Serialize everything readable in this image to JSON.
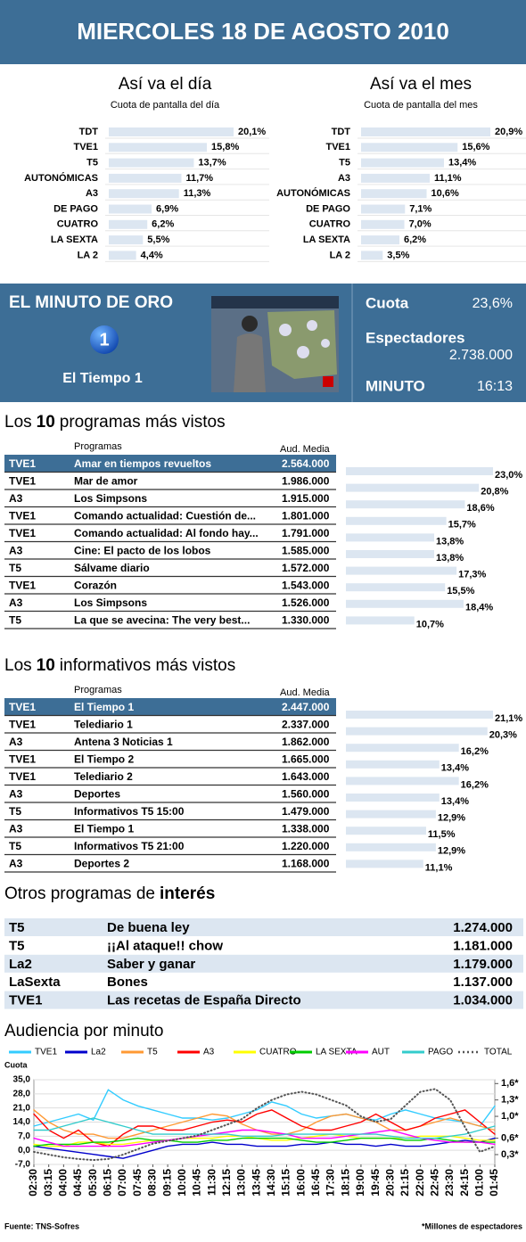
{
  "header": {
    "title": "MIERCOLES 18 DE AGOSTO 2010"
  },
  "chart_data": [
    {
      "type": "bar",
      "title": "Así va el día",
      "subtitle": "Cuota de pantalla del día",
      "color": "#dce6f1",
      "categories": [
        "TDT",
        "TVE1",
        "T5",
        "AUTONÓMICAS",
        "A3",
        "DE PAGO",
        "CUATRO",
        "LA SEXTA",
        "LA 2"
      ],
      "values": [
        20.1,
        15.8,
        13.7,
        11.7,
        11.3,
        6.9,
        6.2,
        5.5,
        4.4
      ],
      "value_labels": [
        "20,1%",
        "15,8%",
        "13,7%",
        "11,7%",
        "11,3%",
        "6,9%",
        "6,2%",
        "5,5%",
        "4,4%"
      ]
    },
    {
      "type": "bar",
      "title": "Así va el mes",
      "subtitle": "Cuota de pantalla del mes",
      "color": "#dce6f1",
      "categories": [
        "TDT",
        "TVE1",
        "T5",
        "A3",
        "AUTONÓMICAS",
        "DE PAGO",
        "CUATRO",
        "LA SEXTA",
        "LA 2"
      ],
      "values": [
        20.9,
        15.6,
        13.4,
        11.1,
        10.6,
        7.1,
        7.0,
        6.2,
        3.5
      ],
      "value_labels": [
        "20,9%",
        "15,6%",
        "13,4%",
        "11,1%",
        "10,6%",
        "7,1%",
        "7,0%",
        "6,2%",
        "3,5%"
      ]
    },
    {
      "type": "bar",
      "color": "#dce6f1",
      "values": [
        23.0,
        20.8,
        18.6,
        15.7,
        13.8,
        13.8,
        17.3,
        15.5,
        18.4,
        10.7
      ],
      "value_labels": [
        "23,0%",
        "20,8%",
        "18,6%",
        "15,7%",
        "13,8%",
        "13,8%",
        "17,3%",
        "15,5%",
        "18,4%",
        "10,7%"
      ]
    },
    {
      "type": "bar",
      "color": "#dce6f1",
      "values": [
        21.1,
        20.3,
        16.2,
        13.4,
        16.2,
        13.4,
        12.9,
        11.5,
        12.9,
        11.1
      ],
      "value_labels": [
        "21,1%",
        "20,3%",
        "16,2%",
        "13,4%",
        "16,2%",
        "13,4%",
        "12,9%",
        "11,5%",
        "12,9%",
        "11,1%"
      ]
    },
    {
      "type": "line",
      "title": "Audiencia por minuto",
      "y_label": "Cuota",
      "categories": [
        "02:30",
        "03:15",
        "04:00",
        "04:45",
        "05:30",
        "06:15",
        "07:00",
        "07:45",
        "08:30",
        "09:15",
        "10:00",
        "10:45",
        "11:30",
        "12:15",
        "13:00",
        "13:45",
        "14:30",
        "15:15",
        "16:00",
        "16:45",
        "17:30",
        "18:15",
        "19:00",
        "19:45",
        "20:30",
        "21:15",
        "22:00",
        "22:45",
        "23:30",
        "24:15",
        "01:00",
        "01:45"
      ],
      "ylim": [
        -7,
        35
      ],
      "yticks": [
        {
          "value": -7,
          "label": "-7,0"
        },
        {
          "value": 0,
          "label": "0,0"
        },
        {
          "value": 7,
          "label": "7,0"
        },
        {
          "value": 14,
          "label": "14,0"
        },
        {
          "value": 21,
          "label": "21,0"
        },
        {
          "value": 28,
          "label": "28,0"
        },
        {
          "value": 35,
          "label": "35,0"
        }
      ],
      "y2lim": [
        0.12,
        1.67
      ],
      "y2ticks": [
        {
          "value": 0.3,
          "label": "0,3*"
        },
        {
          "value": 0.6,
          "label": "0,6*"
        },
        {
          "value": 1.0,
          "label": "1,0*"
        },
        {
          "value": 1.3,
          "label": "1,3*"
        },
        {
          "value": 1.6,
          "label": "1,6*"
        }
      ],
      "series": [
        {
          "name": "TVE1",
          "color": "#33ccff",
          "values": [
            12,
            14,
            16,
            18,
            15,
            30,
            25,
            22,
            20,
            18,
            16,
            16,
            15,
            16,
            18,
            20,
            24,
            22,
            18,
            16,
            17,
            18,
            16,
            15,
            18,
            20,
            18,
            16,
            15,
            14,
            12,
            22
          ]
        },
        {
          "name": "La2",
          "color": "#0000cc",
          "values": [
            2,
            1,
            0,
            -1,
            -2,
            -3,
            -4,
            -2,
            0,
            2,
            3,
            3,
            4,
            3,
            3,
            2,
            2,
            2,
            3,
            3,
            4,
            3,
            3,
            2,
            3,
            2,
            2,
            3,
            4,
            5,
            4,
            6
          ]
        },
        {
          "name": "T5",
          "color": "#ff9933",
          "values": [
            20,
            14,
            10,
            8,
            8,
            6,
            6,
            8,
            10,
            12,
            14,
            16,
            18,
            17,
            13,
            10,
            8,
            8,
            10,
            14,
            17,
            18,
            16,
            14,
            10,
            10,
            12,
            14,
            16,
            14,
            12,
            10
          ]
        },
        {
          "name": "A3",
          "color": "#ff0000",
          "values": [
            18,
            10,
            6,
            10,
            4,
            2,
            8,
            12,
            12,
            10,
            10,
            12,
            14,
            15,
            14,
            18,
            20,
            16,
            12,
            10,
            10,
            12,
            14,
            18,
            14,
            10,
            12,
            16,
            18,
            20,
            14,
            8
          ]
        },
        {
          "name": "CUATRO",
          "color": "#ffff00",
          "values": [
            3,
            2,
            2,
            4,
            4,
            3,
            3,
            4,
            5,
            5,
            6,
            6,
            6,
            7,
            7,
            6,
            5,
            5,
            6,
            7,
            8,
            7,
            6,
            6,
            6,
            6,
            7,
            7,
            7,
            6,
            5,
            5
          ]
        },
        {
          "name": "LA SEXTA",
          "color": "#00cc00",
          "values": [
            2,
            3,
            3,
            3,
            4,
            4,
            5,
            6,
            5,
            5,
            4,
            4,
            5,
            5,
            6,
            6,
            6,
            6,
            5,
            4,
            4,
            5,
            6,
            6,
            6,
            5,
            5,
            6,
            5,
            4,
            4,
            4
          ]
        },
        {
          "name": "AUT",
          "color": "#ff00ff",
          "values": [
            6,
            4,
            2,
            2,
            2,
            2,
            2,
            3,
            4,
            5,
            6,
            7,
            8,
            9,
            10,
            10,
            9,
            8,
            6,
            6,
            6,
            7,
            8,
            9,
            10,
            8,
            6,
            5,
            4,
            4,
            4,
            3
          ]
        },
        {
          "name": "PAGO",
          "color": "#33cccc",
          "values": [
            10,
            10,
            12,
            14,
            16,
            14,
            12,
            10,
            8,
            8,
            8,
            8,
            8,
            8,
            7,
            7,
            7,
            8,
            8,
            8,
            8,
            8,
            8,
            8,
            7,
            6,
            6,
            6,
            7,
            8,
            10,
            12
          ]
        },
        {
          "name": "TOTAL",
          "color": "#555555",
          "axis": "y2",
          "values": [
            0.35,
            0.3,
            0.25,
            0.22,
            0.2,
            0.22,
            0.3,
            0.4,
            0.5,
            0.55,
            0.6,
            0.65,
            0.75,
            0.85,
            0.95,
            1.15,
            1.3,
            1.4,
            1.45,
            1.4,
            1.3,
            1.2,
            1.0,
            0.9,
            0.95,
            1.2,
            1.45,
            1.5,
            1.3,
            0.8,
            0.35,
            0.45
          ]
        }
      ]
    }
  ],
  "golden_minute": {
    "title": "EL MINUTO DE ORO",
    "logo": "1",
    "program": "El Tiempo 1",
    "share_label": "Cuota",
    "share": "23,6%",
    "viewers_label": "Espectadores",
    "viewers": "2.738.000",
    "minute_label": "MINUTO",
    "minute": "16:13"
  },
  "top_programs": {
    "title_pre": "Los",
    "title_num": "10",
    "title_post": "programas más vistos",
    "headers": [
      "Programas",
      "Aud. Media"
    ],
    "rows": [
      [
        "TVE1",
        "Amar en tiempos revueltos",
        "2.564.000"
      ],
      [
        "TVE1",
        "Mar de amor",
        "1.986.000"
      ],
      [
        "A3",
        "Los Simpsons",
        "1.915.000"
      ],
      [
        "TVE1",
        "Comando actualidad: Cuestión de...",
        "1.801.000"
      ],
      [
        "TVE1",
        "Comando actualidad: Al fondo hay...",
        "1.791.000"
      ],
      [
        "A3",
        "Cine: El pacto de los lobos",
        "1.585.000"
      ],
      [
        "T5",
        "Sálvame diario",
        "1.572.000"
      ],
      [
        "TVE1",
        "Corazón",
        "1.543.000"
      ],
      [
        "A3",
        "Los Simpsons",
        "1.526.000"
      ],
      [
        "T5",
        "La que se avecina: The very best...",
        "1.330.000"
      ]
    ]
  },
  "top_news": {
    "title_pre": "Los",
    "title_num": "10",
    "title_post": "informativos más vistos",
    "headers": [
      "Programas",
      "Aud. Media"
    ],
    "rows": [
      [
        "TVE1",
        "El Tiempo 1",
        "2.447.000"
      ],
      [
        "TVE1",
        "Telediario 1",
        "2.337.000"
      ],
      [
        "A3",
        "Antena 3 Noticias 1",
        "1.862.000"
      ],
      [
        "TVE1",
        "El Tiempo 2",
        "1.665.000"
      ],
      [
        "TVE1",
        "Telediario 2",
        "1.643.000"
      ],
      [
        "A3",
        "Deportes",
        "1.560.000"
      ],
      [
        "T5",
        "Informativos T5 15:00",
        "1.479.000"
      ],
      [
        "A3",
        "El Tiempo 1",
        "1.338.000"
      ],
      [
        "T5",
        "Informativos T5 21:00",
        "1.220.000"
      ],
      [
        "A3",
        "Deportes 2",
        "1.168.000"
      ]
    ]
  },
  "other_programs": {
    "title_pre": "Otros programas de",
    "title_bold": "interés",
    "rows": [
      [
        "T5",
        "De buena ley",
        "1.274.000"
      ],
      [
        "T5",
        "¡¡Al ataque!! chow",
        "1.181.000"
      ],
      [
        "La2",
        "Saber y ganar",
        "1.179.000"
      ],
      [
        "LaSexta",
        "Bones",
        "1.137.000"
      ],
      [
        "TVE1",
        "Las recetas de España Directo",
        "1.034.000"
      ]
    ]
  },
  "footer": {
    "source": "Fuente:  TNS-Sofres",
    "note": "*Millones de espectadores"
  }
}
